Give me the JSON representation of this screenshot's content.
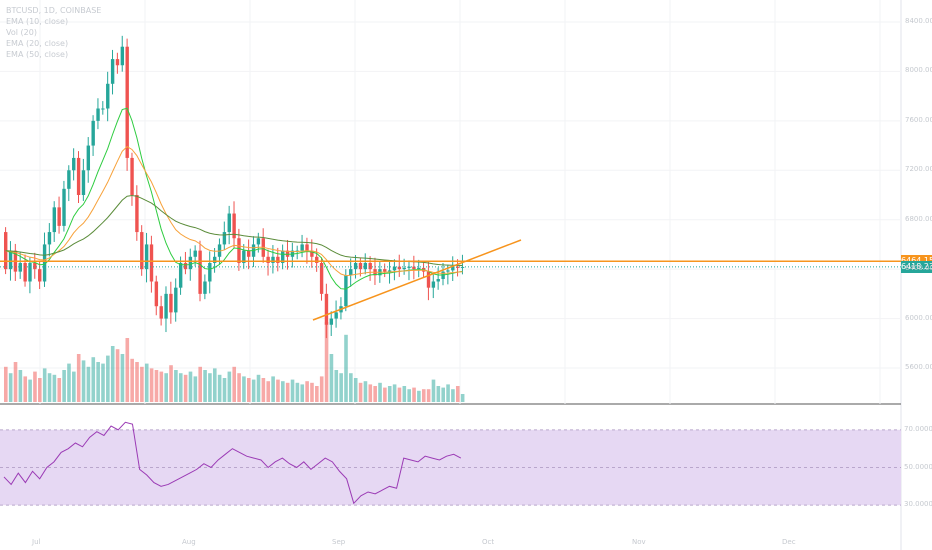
{
  "legend": {
    "symbol": "BTCUSD, 1D, COINBASE",
    "ema1": "EMA (10, close)",
    "vol": "Vol (20)",
    "ema2": "EMA (20, close)",
    "ema3": "EMA (50, close)"
  },
  "colors": {
    "up": "#26a69a",
    "down": "#ef5350",
    "ema_fast": "#2ecc40",
    "ema_mid": "#f7a23b",
    "ema_slow": "#5b8c3a",
    "trend": "#f7941d",
    "rsi_bg": "#e6d8f3",
    "rsi_line": "#9b3bb5"
  },
  "price_axis_labels": [
    "8400.00",
    "8000.00",
    "7600.00",
    "7200.00",
    "6800.00",
    "6400.00",
    "6000.00",
    "5600.00"
  ],
  "price_tags": {
    "resistance": "6464.15",
    "last": "6418.23"
  },
  "rsi_axis_labels": [
    "70.0000",
    "50.0000",
    "30.0000"
  ],
  "time_axis_labels": [
    "Jul",
    "Aug",
    "Sep",
    "Oct",
    "Nov",
    "Dec"
  ],
  "chart_data": {
    "type": "candlestick",
    "y_range": [
      5400,
      8500
    ],
    "rsi_range": [
      20,
      80
    ],
    "candles_o": [
      6700,
      6400,
      6550,
      6380,
      6450,
      6300,
      6450,
      6400,
      6300,
      6600,
      6700,
      6900,
      6750,
      7050,
      7200,
      7300,
      7000,
      7200,
      7400,
      7600,
      7700,
      7700,
      7900,
      8100,
      8050,
      8200,
      7300,
      7000,
      6700,
      6400,
      6600,
      6300,
      6100,
      6000,
      6200,
      6050,
      6250,
      6450,
      6400,
      6500,
      6550,
      6200,
      6300,
      6450,
      6500,
      6600,
      6700,
      6850,
      6650,
      6450,
      6550,
      6500,
      6600,
      6650,
      6500,
      6450,
      6500,
      6450,
      6550,
      6500,
      6550,
      6550,
      6600,
      6550,
      6500,
      6450,
      6200,
      5950,
      6000,
      6050,
      6100,
      6350,
      6400,
      6450,
      6400,
      6450,
      6400,
      6350,
      6400,
      6380,
      6390,
      6420,
      6400,
      6410,
      6420,
      6400,
      6410,
      6380,
      6250,
      6300,
      6320,
      6380,
      6390,
      6420,
      6410
    ],
    "candles_c": [
      6400,
      6550,
      6380,
      6450,
      6300,
      6450,
      6400,
      6300,
      6600,
      6700,
      6900,
      6750,
      7050,
      7200,
      7300,
      7000,
      7200,
      7400,
      7600,
      7700,
      7700,
      7900,
      8100,
      8050,
      8200,
      7300,
      7000,
      6700,
      6400,
      6600,
      6300,
      6100,
      6000,
      6200,
      6050,
      6250,
      6450,
      6400,
      6500,
      6550,
      6200,
      6300,
      6450,
      6500,
      6600,
      6700,
      6850,
      6650,
      6450,
      6550,
      6500,
      6600,
      6650,
      6500,
      6450,
      6500,
      6450,
      6550,
      6500,
      6550,
      6550,
      6600,
      6550,
      6500,
      6450,
      6200,
      5950,
      6000,
      6050,
      6100,
      6350,
      6400,
      6450,
      6400,
      6450,
      6400,
      6350,
      6400,
      6380,
      6390,
      6420,
      6400,
      6410,
      6420,
      6400,
      6410,
      6380,
      6250,
      6300,
      6320,
      6380,
      6390,
      6420,
      6410,
      6418
    ],
    "volume": [
      22,
      18,
      25,
      20,
      16,
      14,
      19,
      15,
      21,
      18,
      17,
      15,
      20,
      24,
      19,
      30,
      26,
      22,
      28,
      25,
      24,
      29,
      35,
      33,
      30,
      40,
      27,
      25,
      22,
      24,
      21,
      20,
      19,
      18,
      23,
      20,
      18,
      17,
      19,
      16,
      22,
      20,
      18,
      21,
      17,
      15,
      19,
      22,
      18,
      16,
      15,
      14,
      17,
      15,
      13,
      16,
      14,
      13,
      12,
      14,
      12,
      11,
      13,
      12,
      10,
      16,
      50,
      30,
      20,
      18,
      42,
      18,
      15,
      12,
      13,
      11,
      10,
      12,
      9,
      10,
      11,
      9,
      10,
      8,
      9,
      7,
      8,
      8,
      14,
      10,
      9,
      11,
      8,
      10,
      5
    ],
    "rsi": [
      45,
      41,
      47,
      42,
      48,
      44,
      50,
      53,
      58,
      60,
      63,
      61,
      66,
      69,
      67,
      72,
      70,
      74,
      73,
      49,
      46,
      42,
      40,
      41,
      43,
      45,
      47,
      49,
      52,
      50,
      54,
      57,
      60,
      58,
      56,
      55,
      54,
      50,
      53,
      55,
      52,
      50,
      53,
      49,
      52,
      55,
      53,
      48,
      44,
      31,
      35,
      37,
      36,
      38,
      40,
      39,
      55,
      54,
      53,
      56,
      55,
      54,
      56,
      57,
      55
    ],
    "trendline": [
      [
        313,
        320
      ],
      [
        521,
        240
      ]
    ],
    "resistance": 6464.15,
    "last_price": 6418.23
  }
}
